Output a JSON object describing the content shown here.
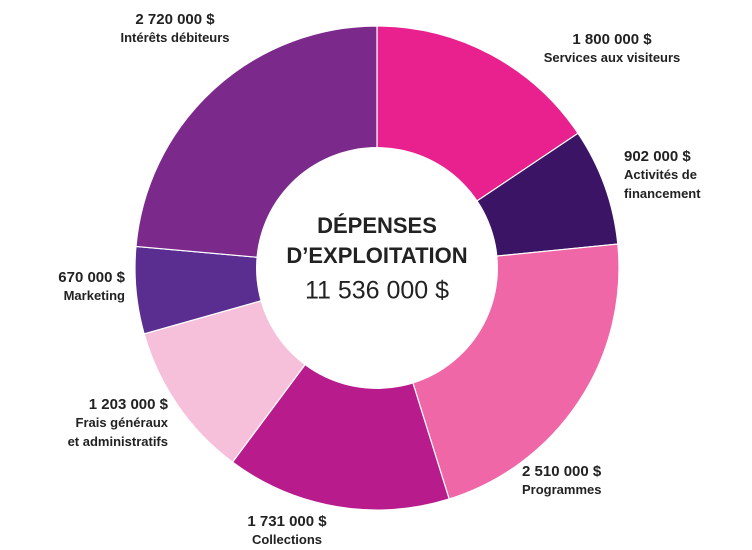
{
  "chart_data": {
    "type": "donut",
    "title": [
      "DÉPENSES",
      "D’EXPLOITATION"
    ],
    "total": 11536000,
    "total_label": "11 536 000 $",
    "categories": [
      "Services aux visiteurs",
      "Activités de financement",
      "Programmes",
      "Collections",
      "Frais généraux et administratifs",
      "Marketing",
      "Intérêts débiteurs"
    ],
    "values": [
      1800000,
      902000,
      2510000,
      1731000,
      1203000,
      670000,
      2720000
    ],
    "value_labels": [
      "1 800 000 $",
      "902 000 $",
      "2 510 000 $",
      "1 731 000 $",
      "1 203 000 $",
      "670 000 $",
      "2 720 000 $"
    ],
    "colors": [
      "#e8218f",
      "#3b1466",
      "#ef67a6",
      "#b81c8c",
      "#f7c0da",
      "#5a2d91",
      "#7b2a8b"
    ]
  }
}
